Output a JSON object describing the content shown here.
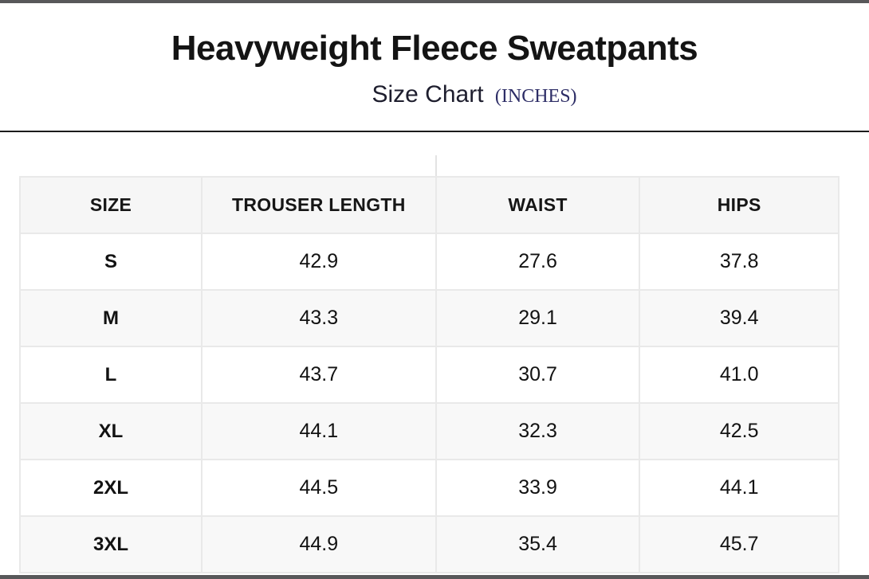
{
  "header": {
    "title": "Heavyweight Fleece Sweatpants",
    "subtitle": "Size Chart",
    "unit": "(INCHES)"
  },
  "colors": {
    "unit_text": "#2d2d66",
    "frame_bar": "#58585a",
    "header_divider": "#1b1b1b",
    "table_header_bg": "#f6f6f6",
    "table_stripe_bg": "#f8f8f8",
    "table_border": "#e9e9e9",
    "text": "#121212"
  },
  "chart_data": {
    "type": "table",
    "title": "Heavyweight Fleece Sweatpants",
    "subtitle": "Size Chart (INCHES)",
    "units": "inches",
    "columns": [
      "SIZE",
      "TROUSER LENGTH",
      "WAIST",
      "HIPS"
    ],
    "rows": [
      {
        "size": "S",
        "values": [
          "42.9",
          "27.6",
          "37.8"
        ]
      },
      {
        "size": "M",
        "values": [
          "43.3",
          "29.1",
          "39.4"
        ]
      },
      {
        "size": "L",
        "values": [
          "43.7",
          "30.7",
          "41.0"
        ]
      },
      {
        "size": "XL",
        "values": [
          "44.1",
          "32.3",
          "42.5"
        ]
      },
      {
        "size": "2XL",
        "values": [
          "44.5",
          "33.9",
          "44.1"
        ]
      },
      {
        "size": "3XL",
        "values": [
          "44.9",
          "35.4",
          "45.7"
        ]
      }
    ]
  }
}
